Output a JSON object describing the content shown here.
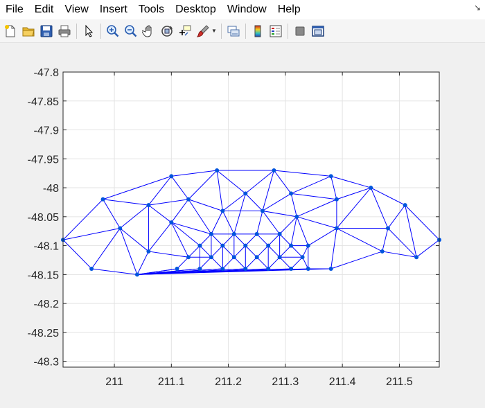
{
  "menu": {
    "items": [
      "File",
      "Edit",
      "View",
      "Insert",
      "Tools",
      "Desktop",
      "Window",
      "Help"
    ],
    "dock_glyph": "↘"
  },
  "toolbar": {
    "icons": [
      "new-figure-icon",
      "open-file-icon",
      "save-icon",
      "print-icon",
      "select-arrow-icon",
      "zoom-in-icon",
      "zoom-out-icon",
      "pan-hand-icon",
      "rotate-3d-icon",
      "data-cursor-icon",
      "brush-icon",
      "link-plot-icon",
      "colorbar-icon",
      "legend-icon",
      "hide-plot-tools-icon",
      "show-plot-tools-icon"
    ]
  },
  "chart_data": {
    "type": "scatter",
    "xlim": [
      210.91,
      211.57
    ],
    "ylim": [
      -48.31,
      -47.8
    ],
    "xticks": [
      211,
      211.1,
      211.2,
      211.3,
      211.4,
      211.5
    ],
    "xtick_labels": [
      "211",
      "211.1",
      "211.2",
      "211.3",
      "211.4",
      "211.5"
    ],
    "yticks": [
      -47.8,
      -47.85,
      -47.9,
      -47.95,
      -48,
      -48.05,
      -48.1,
      -48.15,
      -48.2,
      -48.25,
      -48.3
    ],
    "ytick_labels": [
      "-47.8",
      "-47.85",
      "-47.9",
      "-47.95",
      "-48",
      "-48.05",
      "-48.1",
      "-48.15",
      "-48.2",
      "-48.25",
      "-48.3"
    ],
    "grid": true,
    "color": "#0000ff",
    "marker_color": "#0055dd",
    "points": [
      [
        210.91,
        -48.09
      ],
      [
        210.96,
        -48.14
      ],
      [
        210.98,
        -48.02
      ],
      [
        211.01,
        -48.07
      ],
      [
        211.04,
        -48.15
      ],
      [
        211.06,
        -48.03
      ],
      [
        211.06,
        -48.11
      ],
      [
        211.1,
        -47.98
      ],
      [
        211.1,
        -48.06
      ],
      [
        211.11,
        -48.14
      ],
      [
        211.13,
        -48.02
      ],
      [
        211.13,
        -48.12
      ],
      [
        211.15,
        -48.1
      ],
      [
        211.15,
        -48.14
      ],
      [
        211.17,
        -48.08
      ],
      [
        211.17,
        -48.12
      ],
      [
        211.18,
        -47.97
      ],
      [
        211.19,
        -48.04
      ],
      [
        211.19,
        -48.1
      ],
      [
        211.19,
        -48.14
      ],
      [
        211.21,
        -48.08
      ],
      [
        211.21,
        -48.12
      ],
      [
        211.23,
        -48.01
      ],
      [
        211.23,
        -48.1
      ],
      [
        211.23,
        -48.14
      ],
      [
        211.25,
        -48.08
      ],
      [
        211.25,
        -48.12
      ],
      [
        211.26,
        -48.04
      ],
      [
        211.27,
        -48.1
      ],
      [
        211.27,
        -48.14
      ],
      [
        211.28,
        -47.97
      ],
      [
        211.29,
        -48.08
      ],
      [
        211.29,
        -48.12
      ],
      [
        211.31,
        -48.01
      ],
      [
        211.31,
        -48.1
      ],
      [
        211.31,
        -48.14
      ],
      [
        211.32,
        -48.05
      ],
      [
        211.33,
        -48.12
      ],
      [
        211.34,
        -48.1
      ],
      [
        211.34,
        -48.14
      ],
      [
        211.38,
        -47.98
      ],
      [
        211.38,
        -48.14
      ],
      [
        211.39,
        -48.02
      ],
      [
        211.39,
        -48.07
      ],
      [
        211.45,
        -48.0
      ],
      [
        211.47,
        -48.11
      ],
      [
        211.48,
        -48.07
      ],
      [
        211.51,
        -48.03
      ],
      [
        211.53,
        -48.12
      ],
      [
        211.57,
        -48.09
      ]
    ],
    "edges": [
      [
        0,
        2
      ],
      [
        0,
        3
      ],
      [
        0,
        1
      ],
      [
        1,
        3
      ],
      [
        1,
        4
      ],
      [
        2,
        3
      ],
      [
        2,
        5
      ],
      [
        2,
        7
      ],
      [
        3,
        5
      ],
      [
        3,
        4
      ],
      [
        3,
        6
      ],
      [
        4,
        6
      ],
      [
        5,
        7
      ],
      [
        5,
        10
      ],
      [
        5,
        8
      ],
      [
        5,
        6
      ],
      [
        6,
        8
      ],
      [
        6,
        11
      ],
      [
        7,
        10
      ],
      [
        7,
        16
      ],
      [
        8,
        10
      ],
      [
        8,
        11
      ],
      [
        8,
        12
      ],
      [
        8,
        14
      ],
      [
        10,
        16
      ],
      [
        10,
        17
      ],
      [
        10,
        14
      ],
      [
        11,
        12
      ],
      [
        11,
        9
      ],
      [
        11,
        15
      ],
      [
        9,
        4
      ],
      [
        12,
        13
      ],
      [
        12,
        14
      ],
      [
        12,
        15
      ],
      [
        14,
        17
      ],
      [
        14,
        15
      ],
      [
        14,
        18
      ],
      [
        14,
        20
      ],
      [
        13,
        15
      ],
      [
        13,
        4
      ],
      [
        15,
        18
      ],
      [
        15,
        19
      ],
      [
        16,
        17
      ],
      [
        16,
        22
      ],
      [
        16,
        30
      ],
      [
        17,
        22
      ],
      [
        17,
        20
      ],
      [
        17,
        27
      ],
      [
        18,
        20
      ],
      [
        18,
        21
      ],
      [
        18,
        19
      ],
      [
        19,
        21
      ],
      [
        19,
        4
      ],
      [
        20,
        22
      ],
      [
        20,
        23
      ],
      [
        20,
        25
      ],
      [
        20,
        21
      ],
      [
        21,
        23
      ],
      [
        21,
        24
      ],
      [
        22,
        30
      ],
      [
        22,
        27
      ],
      [
        23,
        25
      ],
      [
        23,
        26
      ],
      [
        23,
        24
      ],
      [
        24,
        26
      ],
      [
        24,
        4
      ],
      [
        25,
        27
      ],
      [
        25,
        28
      ],
      [
        25,
        31
      ],
      [
        26,
        28
      ],
      [
        26,
        29
      ],
      [
        27,
        30
      ],
      [
        27,
        33
      ],
      [
        27,
        36
      ],
      [
        27,
        31
      ],
      [
        28,
        31
      ],
      [
        28,
        32
      ],
      [
        28,
        29
      ],
      [
        29,
        32
      ],
      [
        29,
        4
      ],
      [
        30,
        33
      ],
      [
        30,
        40
      ],
      [
        31,
        36
      ],
      [
        31,
        34
      ],
      [
        31,
        32
      ],
      [
        32,
        34
      ],
      [
        32,
        37
      ],
      [
        32,
        35
      ],
      [
        33,
        36
      ],
      [
        33,
        40
      ],
      [
        33,
        42
      ],
      [
        34,
        36
      ],
      [
        34,
        38
      ],
      [
        34,
        37
      ],
      [
        35,
        37
      ],
      [
        35,
        4
      ],
      [
        36,
        42
      ],
      [
        36,
        43
      ],
      [
        36,
        38
      ],
      [
        37,
        38
      ],
      [
        37,
        39
      ],
      [
        38,
        39
      ],
      [
        38,
        43
      ],
      [
        39,
        41
      ],
      [
        39,
        4
      ],
      [
        40,
        42
      ],
      [
        40,
        44
      ],
      [
        41,
        43
      ],
      [
        41,
        45
      ],
      [
        41,
        4
      ],
      [
        42,
        43
      ],
      [
        42,
        44
      ],
      [
        43,
        44
      ],
      [
        43,
        46
      ],
      [
        43,
        45
      ],
      [
        44,
        47
      ],
      [
        44,
        46
      ],
      [
        45,
        46
      ],
      [
        45,
        48
      ],
      [
        46,
        47
      ],
      [
        46,
        48
      ],
      [
        47,
        48
      ],
      [
        47,
        49
      ],
      [
        48,
        49
      ],
      [
        9,
        4
      ],
      [
        13,
        4
      ],
      [
        19,
        4
      ],
      [
        24,
        4
      ]
    ]
  }
}
